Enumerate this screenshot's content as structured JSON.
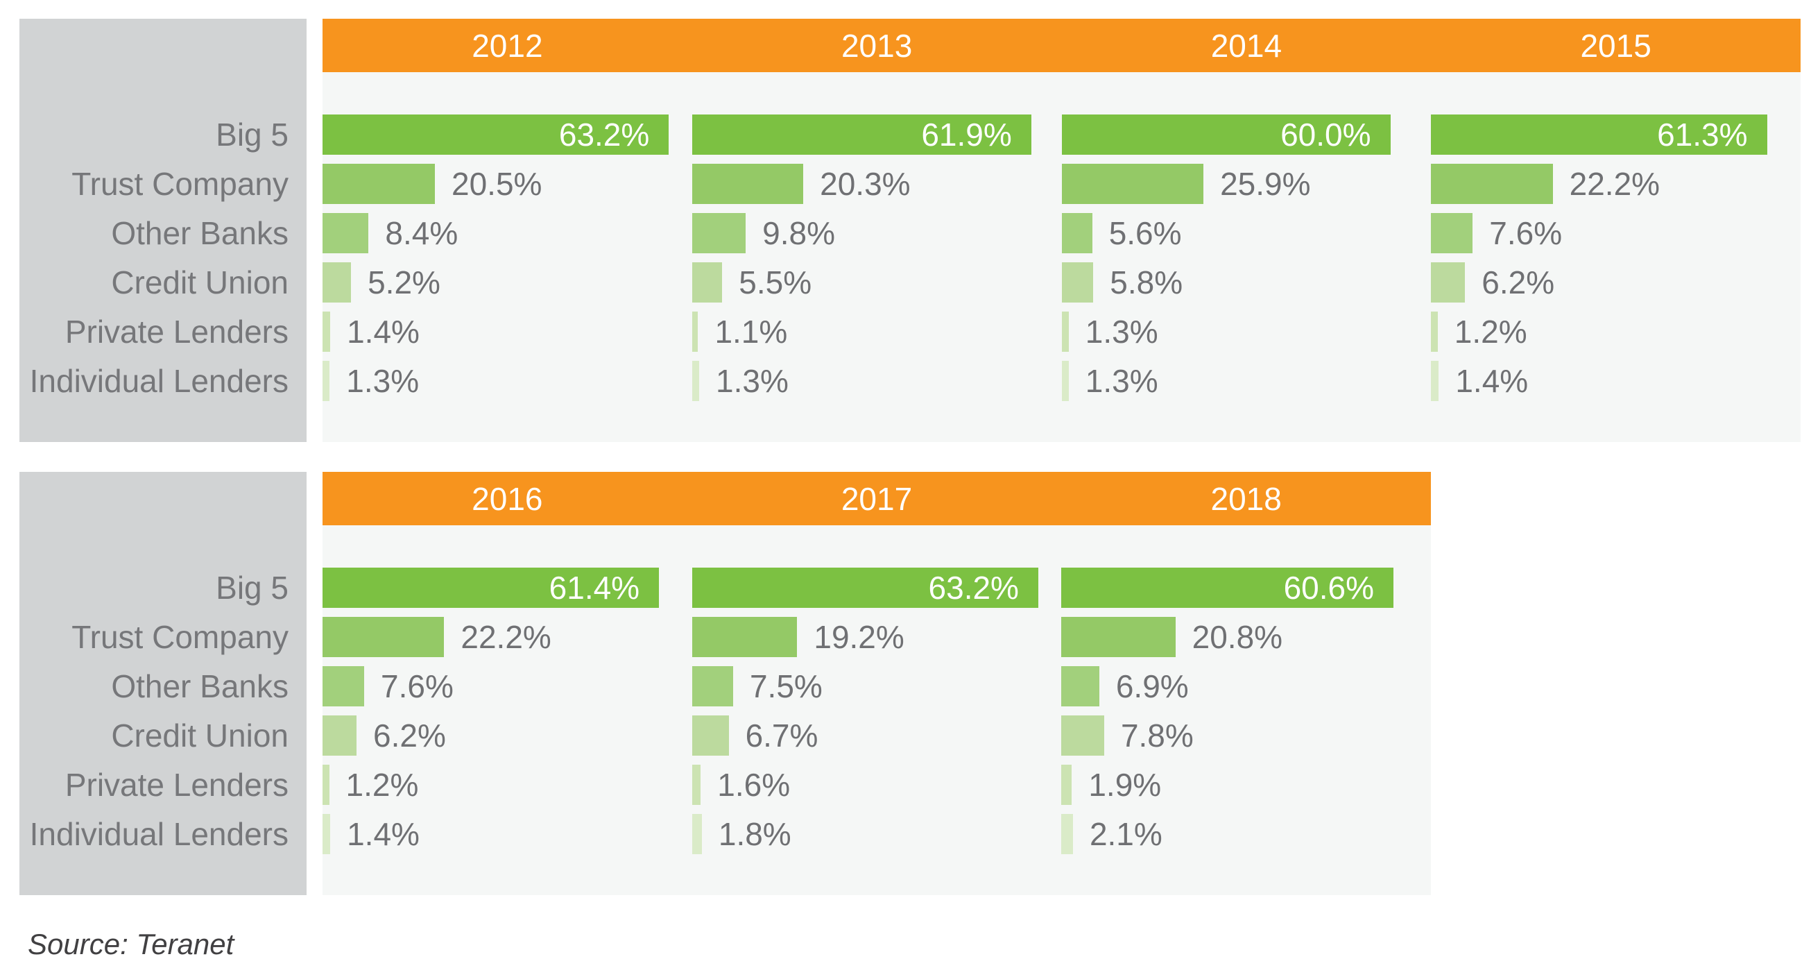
{
  "chart_data": {
    "type": "bar",
    "orientation": "horizontal",
    "unit": "%",
    "value_suffix": "%",
    "categories": [
      "Big 5",
      "Trust Company",
      "Other Banks",
      "Credit Union",
      "Private Lenders",
      "Individual Lenders"
    ],
    "series": [
      {
        "name": "2012",
        "values": [
          63.2,
          20.5,
          8.4,
          5.2,
          1.4,
          1.3
        ]
      },
      {
        "name": "2013",
        "values": [
          61.9,
          20.3,
          9.8,
          5.5,
          1.1,
          1.3
        ]
      },
      {
        "name": "2014",
        "values": [
          60.0,
          25.9,
          5.6,
          5.8,
          1.3,
          1.3
        ]
      },
      {
        "name": "2015",
        "values": [
          61.3,
          22.2,
          7.6,
          6.2,
          1.2,
          1.4
        ]
      },
      {
        "name": "2016",
        "values": [
          61.4,
          22.2,
          7.6,
          6.2,
          1.2,
          1.4
        ]
      },
      {
        "name": "2017",
        "values": [
          63.2,
          19.2,
          7.5,
          6.7,
          1.6,
          1.8
        ]
      },
      {
        "name": "2018",
        "values": [
          60.6,
          20.8,
          6.9,
          7.8,
          1.9,
          2.1
        ]
      }
    ],
    "blocks": [
      [
        0,
        1,
        2,
        3
      ],
      [
        4,
        5,
        6
      ]
    ],
    "xlim": [
      0,
      67.5
    ],
    "grid": false,
    "legend": "none",
    "value_labels": "inside-bar for first category, right of bar for others"
  },
  "source": {
    "label": "Source: Teranet"
  },
  "colors": {
    "header_bg": "#F7941E",
    "panel_bg": "#D1D3D4",
    "plot_bg": "#F5F7F6",
    "bar_colors": [
      "#7CC142",
      "#94C966",
      "#A2D07C",
      "#BCDA9E",
      "#CCE3B2",
      "#DAEBC8"
    ],
    "year_text": "#FFFFFF",
    "inner_value_text": "#FFFFFF",
    "outer_value_text": "#6F7073",
    "category_text": "#76777A",
    "source_text": "#414042"
  }
}
